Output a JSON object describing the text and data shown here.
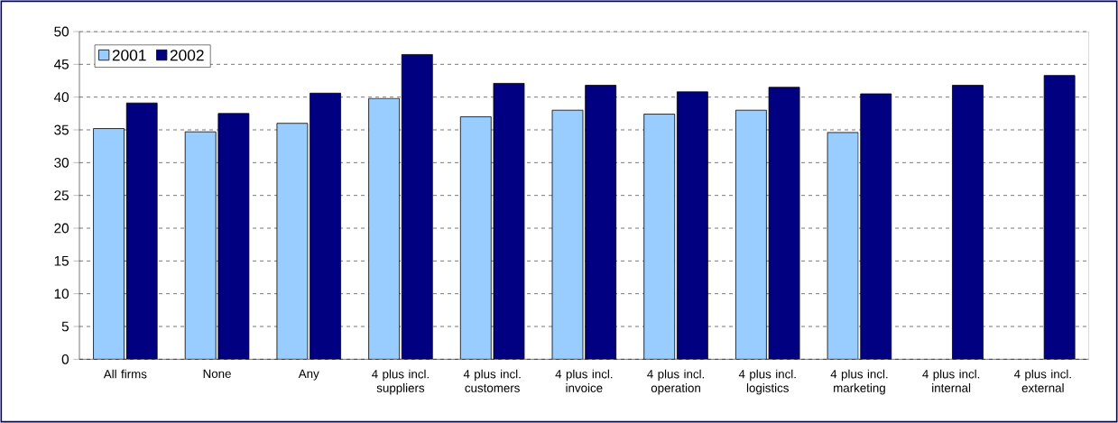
{
  "chart_data": {
    "type": "bar",
    "categories": [
      "All firms",
      "None",
      "Any",
      "4 plus incl. suppliers",
      "4 plus incl. customers",
      "4 plus incl. invoice",
      "4 plus incl. operation",
      "4 plus incl. logistics",
      "4 plus incl. marketing",
      "4 plus incl. internal",
      "4 plus incl. external"
    ],
    "series": [
      {
        "name": "2001",
        "color": "#99ccff",
        "values": [
          35.2,
          34.7,
          36.0,
          39.8,
          37.0,
          38.0,
          37.4,
          38.0,
          34.6,
          null,
          null
        ]
      },
      {
        "name": "2002",
        "color": "#000080",
        "values": [
          39.1,
          37.5,
          40.6,
          46.5,
          42.1,
          41.8,
          40.8,
          41.5,
          40.5,
          41.8,
          43.3
        ]
      }
    ],
    "ylim": [
      0,
      50
    ],
    "yticks": [
      0,
      5,
      10,
      15,
      20,
      25,
      30,
      35,
      40,
      45,
      50
    ],
    "grid": "y",
    "legend": "top left"
  }
}
